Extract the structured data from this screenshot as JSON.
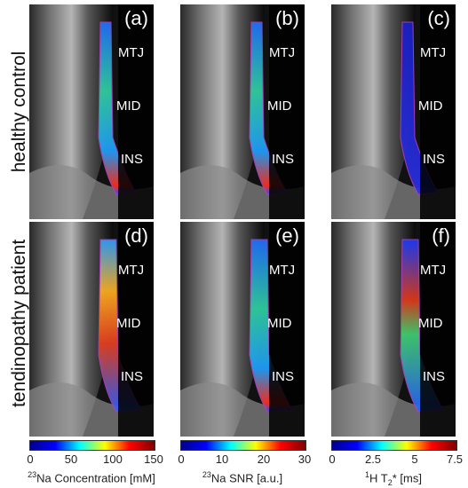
{
  "rows": [
    {
      "label": "healthy control",
      "panels": [
        {
          "id": "a",
          "tag": "(a)",
          "map": "na"
        },
        {
          "id": "b",
          "tag": "(b)",
          "map": "snr"
        },
        {
          "id": "c",
          "tag": "(c)",
          "map": "t2"
        }
      ]
    },
    {
      "label": "tendinopathy patient",
      "panels": [
        {
          "id": "d",
          "tag": "(d)",
          "map": "na"
        },
        {
          "id": "e",
          "tag": "(e)",
          "map": "snr"
        },
        {
          "id": "f",
          "tag": "(f)",
          "map": "t2"
        }
      ]
    }
  ],
  "regions": {
    "mtj": "MTJ",
    "mid": "MID",
    "ins": "INS"
  },
  "colorbars": [
    {
      "ticks": [
        "0",
        "50",
        "100",
        "150"
      ],
      "caption_sup": "23",
      "caption_rest": "Na Concentration [mM]"
    },
    {
      "ticks": [
        "0",
        "10",
        "20",
        "30"
      ],
      "caption_sup": "23",
      "caption_rest": "Na SNR [a.u.]"
    },
    {
      "ticks": [
        "0",
        "2.5",
        "5",
        "7.5"
      ],
      "caption_sup": "1",
      "caption_rest": "H T",
      "caption_sub": "2",
      "caption_end": "* [ms]"
    }
  ],
  "colors": {
    "jet": [
      "#00008f",
      "#0000ff",
      "#00ffff",
      "#ffff00",
      "#ff0000",
      "#800000"
    ]
  }
}
